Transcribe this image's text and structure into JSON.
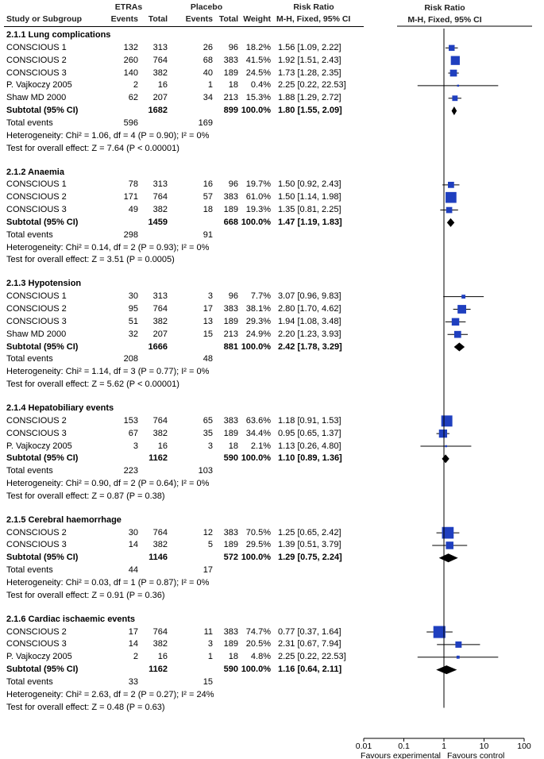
{
  "header": {
    "group1": "ETRAs",
    "group2": "Placebo",
    "rr_title": "Risk Ratio",
    "study_label": "Study or Subgroup",
    "events": "Events",
    "total": "Total",
    "weight": "Weight",
    "method": "M-H, Fixed, 95% CI",
    "plot_title": "Risk Ratio",
    "plot_method": "M-H, Fixed, 95% CI"
  },
  "chart_data": {
    "type": "forest",
    "xscale": "log",
    "xlim": [
      0.01,
      100
    ],
    "ticks": [
      "0.01",
      "0.1",
      "1",
      "10",
      "100"
    ],
    "xlabel_left": "Favours experimental",
    "xlabel_right": "Favours control",
    "sections": [
      {
        "title": "2.1.1 Lung complications",
        "studies": [
          {
            "name": "CONSCIOUS 1",
            "e1": "132",
            "t1": "313",
            "e2": "26",
            "t2": "96",
            "weight": "18.2%",
            "ci": "1.56 [1.09, 2.22]",
            "rr": 1.56,
            "lo": 1.09,
            "hi": 2.22,
            "w": 18.2
          },
          {
            "name": "CONSCIOUS 2",
            "e1": "260",
            "t1": "764",
            "e2": "68",
            "t2": "383",
            "weight": "41.5%",
            "ci": "1.92 [1.51, 2.43]",
            "rr": 1.92,
            "lo": 1.51,
            "hi": 2.43,
            "w": 41.5
          },
          {
            "name": "CONSCIOUS 3",
            "e1": "140",
            "t1": "382",
            "e2": "40",
            "t2": "189",
            "weight": "24.5%",
            "ci": "1.73 [1.28, 2.35]",
            "rr": 1.73,
            "lo": 1.28,
            "hi": 2.35,
            "w": 24.5
          },
          {
            "name": "P. Vajkoczy 2005",
            "e1": "2",
            "t1": "16",
            "e2": "1",
            "t2": "18",
            "weight": "0.4%",
            "ci": "2.25 [0.22, 22.53]",
            "rr": 2.25,
            "lo": 0.22,
            "hi": 22.53,
            "w": 0.4
          },
          {
            "name": "Shaw MD 2000",
            "e1": "62",
            "t1": "207",
            "e2": "34",
            "t2": "213",
            "weight": "15.3%",
            "ci": "1.88 [1.29, 2.72]",
            "rr": 1.88,
            "lo": 1.29,
            "hi": 2.72,
            "w": 15.3
          }
        ],
        "subtotal": {
          "label": "Subtotal (95% CI)",
          "t1": "1682",
          "t2": "899",
          "weight": "100.0%",
          "ci": "1.80 [1.55, 2.09]",
          "rr": 1.8,
          "lo": 1.55,
          "hi": 2.09
        },
        "total_events": {
          "label": "Total events",
          "e1": "596",
          "e2": "169"
        },
        "heterogeneity": "Heterogeneity: Chi² = 1.06, df = 4 (P = 0.90); I² = 0%",
        "overall": "Test for overall effect: Z = 7.64 (P < 0.00001)"
      },
      {
        "title": "2.1.2 Anaemia",
        "studies": [
          {
            "name": "CONSCIOUS 1",
            "e1": "78",
            "t1": "313",
            "e2": "16",
            "t2": "96",
            "weight": "19.7%",
            "ci": "1.50 [0.92, 2.43]",
            "rr": 1.5,
            "lo": 0.92,
            "hi": 2.43,
            "w": 19.7
          },
          {
            "name": "CONSCIOUS 2",
            "e1": "171",
            "t1": "764",
            "e2": "57",
            "t2": "383",
            "weight": "61.0%",
            "ci": "1.50 [1.14, 1.98]",
            "rr": 1.5,
            "lo": 1.14,
            "hi": 1.98,
            "w": 61.0
          },
          {
            "name": "CONSCIOUS 3",
            "e1": "49",
            "t1": "382",
            "e2": "18",
            "t2": "189",
            "weight": "19.3%",
            "ci": "1.35 [0.81, 2.25]",
            "rr": 1.35,
            "lo": 0.81,
            "hi": 2.25,
            "w": 19.3
          }
        ],
        "subtotal": {
          "label": "Subtotal (95% CI)",
          "t1": "1459",
          "t2": "668",
          "weight": "100.0%",
          "ci": "1.47 [1.19, 1.83]",
          "rr": 1.47,
          "lo": 1.19,
          "hi": 1.83
        },
        "total_events": {
          "label": "Total events",
          "e1": "298",
          "e2": "91"
        },
        "heterogeneity": "Heterogeneity: Chi² = 0.14, df = 2 (P = 0.93); I² = 0%",
        "overall": "Test for overall effect: Z = 3.51 (P = 0.0005)"
      },
      {
        "title": "2.1.3 Hypotension",
        "studies": [
          {
            "name": "CONSCIOUS 1",
            "e1": "30",
            "t1": "313",
            "e2": "3",
            "t2": "96",
            "weight": "7.7%",
            "ci": "3.07 [0.96, 9.83]",
            "rr": 3.07,
            "lo": 0.96,
            "hi": 9.83,
            "w": 7.7
          },
          {
            "name": "CONSCIOUS 2",
            "e1": "95",
            "t1": "764",
            "e2": "17",
            "t2": "383",
            "weight": "38.1%",
            "ci": "2.80 [1.70, 4.62]",
            "rr": 2.8,
            "lo": 1.7,
            "hi": 4.62,
            "w": 38.1
          },
          {
            "name": "CONSCIOUS 3",
            "e1": "51",
            "t1": "382",
            "e2": "13",
            "t2": "189",
            "weight": "29.3%",
            "ci": "1.94 [1.08, 3.48]",
            "rr": 1.94,
            "lo": 1.08,
            "hi": 3.48,
            "w": 29.3
          },
          {
            "name": "Shaw MD 2000",
            "e1": "32",
            "t1": "207",
            "e2": "15",
            "t2": "213",
            "weight": "24.9%",
            "ci": "2.20 [1.23, 3.93]",
            "rr": 2.2,
            "lo": 1.23,
            "hi": 3.93,
            "w": 24.9
          }
        ],
        "subtotal": {
          "label": "Subtotal (95% CI)",
          "t1": "1666",
          "t2": "881",
          "weight": "100.0%",
          "ci": "2.42 [1.78, 3.29]",
          "rr": 2.42,
          "lo": 1.78,
          "hi": 3.29
        },
        "total_events": {
          "label": "Total events",
          "e1": "208",
          "e2": "48"
        },
        "heterogeneity": "Heterogeneity: Chi² = 1.14, df = 3 (P = 0.77); I² = 0%",
        "overall": "Test for overall effect: Z = 5.62 (P < 0.00001)"
      },
      {
        "title": "2.1.4 Hepatobiliary events",
        "studies": [
          {
            "name": "CONSCIOUS 2",
            "e1": "153",
            "t1": "764",
            "e2": "65",
            "t2": "383",
            "weight": "63.6%",
            "ci": "1.18 [0.91, 1.53]",
            "rr": 1.18,
            "lo": 0.91,
            "hi": 1.53,
            "w": 63.6
          },
          {
            "name": "CONSCIOUS 3",
            "e1": "67",
            "t1": "382",
            "e2": "35",
            "t2": "189",
            "weight": "34.4%",
            "ci": "0.95 [0.65, 1.37]",
            "rr": 0.95,
            "lo": 0.65,
            "hi": 1.37,
            "w": 34.4
          },
          {
            "name": "P. Vajkoczy 2005",
            "e1": "3",
            "t1": "16",
            "e2": "3",
            "t2": "18",
            "weight": "2.1%",
            "ci": "1.13 [0.26, 4.80]",
            "rr": 1.13,
            "lo": 0.26,
            "hi": 4.8,
            "w": 2.1
          }
        ],
        "subtotal": {
          "label": "Subtotal (95% CI)",
          "t1": "1162",
          "t2": "590",
          "weight": "100.0%",
          "ci": "1.10 [0.89, 1.36]",
          "rr": 1.1,
          "lo": 0.89,
          "hi": 1.36
        },
        "total_events": {
          "label": "Total events",
          "e1": "223",
          "e2": "103"
        },
        "heterogeneity": "Heterogeneity: Chi² = 0.90, df = 2 (P = 0.64); I² = 0%",
        "overall": "Test for overall effect: Z = 0.87 (P = 0.38)"
      },
      {
        "title": "2.1.5 Cerebral haemorrhage",
        "studies": [
          {
            "name": "CONSCIOUS 2",
            "e1": "30",
            "t1": "764",
            "e2": "12",
            "t2": "383",
            "weight": "70.5%",
            "ci": "1.25 [0.65, 2.42]",
            "rr": 1.25,
            "lo": 0.65,
            "hi": 2.42,
            "w": 70.5
          },
          {
            "name": "CONSCIOUS 3",
            "e1": "14",
            "t1": "382",
            "e2": "5",
            "t2": "189",
            "weight": "29.5%",
            "ci": "1.39 [0.51, 3.79]",
            "rr": 1.39,
            "lo": 0.51,
            "hi": 3.79,
            "w": 29.5
          }
        ],
        "subtotal": {
          "label": "Subtotal (95% CI)",
          "t1": "1146",
          "t2": "572",
          "weight": "100.0%",
          "ci": "1.29 [0.75, 2.24]",
          "rr": 1.29,
          "lo": 0.75,
          "hi": 2.24
        },
        "total_events": {
          "label": "Total events",
          "e1": "44",
          "e2": "17"
        },
        "heterogeneity": "Heterogeneity: Chi² = 0.03, df = 1 (P = 0.87); I² = 0%",
        "overall": "Test for overall effect: Z = 0.91 (P = 0.36)"
      },
      {
        "title": "2.1.6 Cardiac ischaemic events",
        "studies": [
          {
            "name": "CONSCIOUS 2",
            "e1": "17",
            "t1": "764",
            "e2": "11",
            "t2": "383",
            "weight": "74.7%",
            "ci": "0.77 [0.37, 1.64]",
            "rr": 0.77,
            "lo": 0.37,
            "hi": 1.64,
            "w": 74.7
          },
          {
            "name": "CONSCIOUS 3",
            "e1": "14",
            "t1": "382",
            "e2": "3",
            "t2": "189",
            "weight": "20.5%",
            "ci": "2.31 [0.67, 7.94]",
            "rr": 2.31,
            "lo": 0.67,
            "hi": 7.94,
            "w": 20.5
          },
          {
            "name": "P. Vajkoczy 2005",
            "e1": "2",
            "t1": "16",
            "e2": "1",
            "t2": "18",
            "weight": "4.8%",
            "ci": "2.25 [0.22, 22.53]",
            "rr": 2.25,
            "lo": 0.22,
            "hi": 22.53,
            "w": 4.8
          }
        ],
        "subtotal": {
          "label": "Subtotal (95% CI)",
          "t1": "1162",
          "t2": "590",
          "weight": "100.0%",
          "ci": "1.16 [0.64, 2.11]",
          "rr": 1.16,
          "lo": 0.64,
          "hi": 2.11
        },
        "total_events": {
          "label": "Total events",
          "e1": "33",
          "e2": "15"
        },
        "heterogeneity": "Heterogeneity: Chi² = 2.63, df = 2 (P = 0.27); I² = 24%",
        "overall": "Test for overall effect: Z = 0.48 (P = 0.63)"
      }
    ]
  },
  "colors": {
    "square": "#1f3fbf",
    "diamond": "#000000",
    "line": "#000000"
  }
}
